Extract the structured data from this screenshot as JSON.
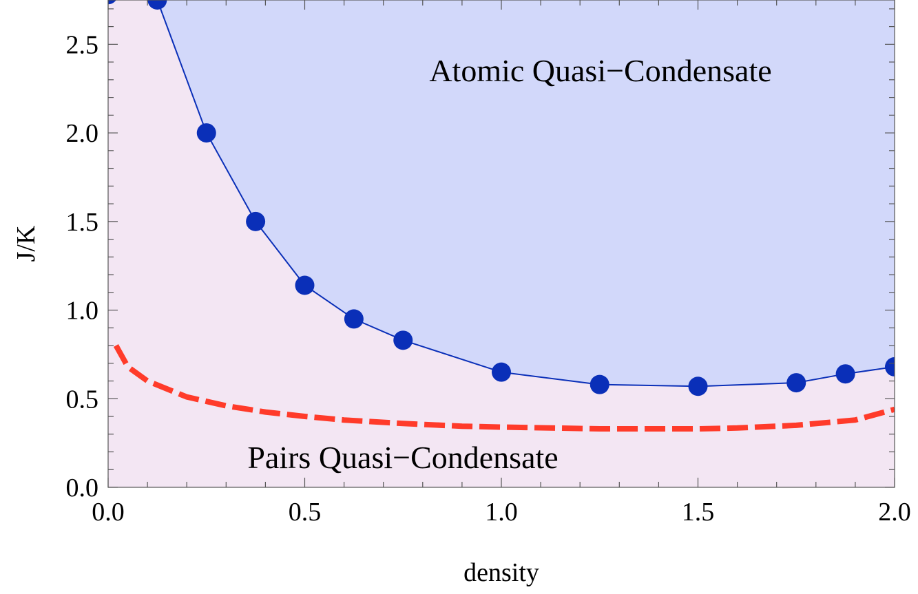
{
  "chart_data": {
    "type": "area",
    "xlabel": "density",
    "ylabel": "J/K",
    "xlim": [
      0,
      2
    ],
    "ylim": [
      0,
      2.75
    ],
    "xticks": [
      "0.0",
      "0.5",
      "1.0",
      "1.5",
      "2.0"
    ],
    "yticks": [
      "0.0",
      "0.5",
      "1.0",
      "1.5",
      "2.0",
      "2.5"
    ],
    "grid": false,
    "legend": "none",
    "annotations": {
      "upper_region": "Atomic Quasi−Condensate",
      "lower_region": "Pairs Quasi−Condensate"
    },
    "series": [
      {
        "style": "line-with-markers",
        "color": "#0a2fb8",
        "x": [
          0.0,
          0.125,
          0.25,
          0.375,
          0.5,
          0.625,
          0.75,
          1.0,
          1.25,
          1.5,
          1.75,
          1.875,
          2.0
        ],
        "y": [
          2.78,
          2.75,
          2.0,
          1.5,
          1.14,
          0.95,
          0.83,
          0.65,
          0.58,
          0.57,
          0.59,
          0.64,
          0.68
        ]
      },
      {
        "style": "dashed",
        "color": "#ff3b2a",
        "x": [
          0.02,
          0.05,
          0.1,
          0.2,
          0.3,
          0.4,
          0.5,
          0.6,
          0.75,
          0.9,
          1.0,
          1.25,
          1.5,
          1.6,
          1.75,
          1.9,
          2.0
        ],
        "y": [
          0.8,
          0.68,
          0.6,
          0.51,
          0.46,
          0.425,
          0.4,
          0.38,
          0.36,
          0.345,
          0.34,
          0.33,
          0.33,
          0.335,
          0.35,
          0.38,
          0.44
        ]
      }
    ],
    "colors": {
      "upper_fill": "#d2d8fa",
      "lower_fill": "#f3e6f3",
      "marker": "#0a2fb8",
      "dashed_line": "#ff3b2a"
    }
  }
}
